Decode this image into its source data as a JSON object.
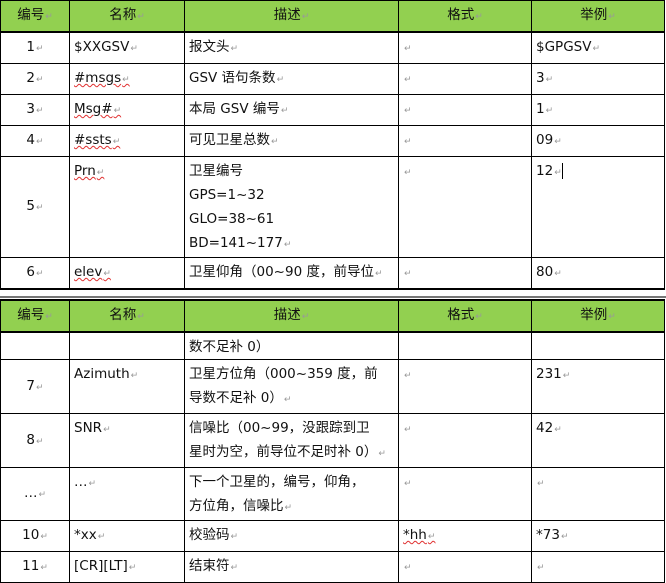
{
  "headers": {
    "no": "编号",
    "name": "名称",
    "desc": "描述",
    "format": "格式",
    "example": "举例"
  },
  "page1_rows": [
    {
      "no": "1",
      "name": "$XXGSV",
      "desc": [
        "报文头"
      ],
      "format": "",
      "example": "$GPGSV"
    },
    {
      "no": "2",
      "name": "#msgs",
      "desc": [
        "GSV 语句条数"
      ],
      "format": "",
      "example": "3"
    },
    {
      "no": "3",
      "name": "Msg#",
      "desc": [
        "本局 GSV 编号"
      ],
      "format": "",
      "example": "1"
    },
    {
      "no": "4",
      "name": "#ssts",
      "desc": [
        "可见卫星总数"
      ],
      "format": "",
      "example": "09"
    },
    {
      "no": "5",
      "name": "Prn",
      "desc": [
        "卫星编号",
        "GPS=1~32",
        "GLO=38~61",
        "BD=141~177"
      ],
      "format": "",
      "example": "12"
    },
    {
      "no": "6",
      "name": "elev",
      "desc": [
        "卫星仰角（00~90 度，前导位"
      ],
      "format": "",
      "example": "80"
    }
  ],
  "page2_rows": [
    {
      "no": "",
      "name": "",
      "desc": [
        "数不足补 0）"
      ],
      "format": "",
      "example": ""
    },
    {
      "no": "7",
      "name": "Azimuth",
      "desc": [
        "卫星方位角（000~359 度，前",
        "导数不足补 0）"
      ],
      "format": "",
      "example": "231"
    },
    {
      "no": "8",
      "name": "SNR",
      "desc": [
        "信噪比（00~99，没跟踪到卫",
        "星时为空，前导位不足时补 0）"
      ],
      "format": "",
      "example": "42"
    },
    {
      "no": "…",
      "name": "…",
      "desc": [
        "下一个卫星的，编号，仰角，",
        "方位角，信噪比"
      ],
      "format": "",
      "example": ""
    },
    {
      "no": "10",
      "name": "*xx",
      "desc": [
        "校验码"
      ],
      "format": "*hh",
      "example": "*73"
    },
    {
      "no": "11",
      "name": "[CR][LT]",
      "desc": [
        "结束符"
      ],
      "format": "",
      "example": ""
    }
  ],
  "colors": {
    "header_bg": "#92d050"
  }
}
